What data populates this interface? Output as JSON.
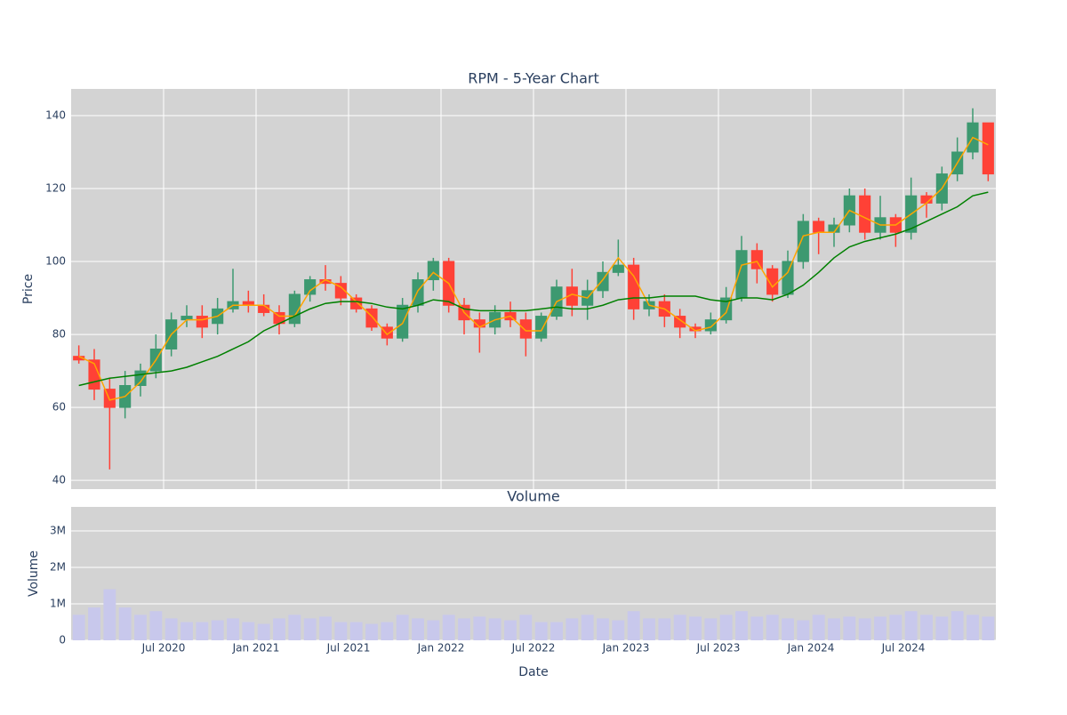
{
  "chart_data": [
    {
      "type": "candlestick",
      "title": "RPM - 5-Year Chart",
      "ylabel": "Price",
      "x": [
        "2020-01",
        "2020-02",
        "2020-03",
        "2020-04",
        "2020-05",
        "2020-06",
        "2020-07",
        "2020-08",
        "2020-09",
        "2020-10",
        "2020-11",
        "2020-12",
        "2021-01",
        "2021-02",
        "2021-03",
        "2021-04",
        "2021-05",
        "2021-06",
        "2021-07",
        "2021-08",
        "2021-09",
        "2021-10",
        "2021-11",
        "2021-12",
        "2022-01",
        "2022-02",
        "2022-03",
        "2022-04",
        "2022-05",
        "2022-06",
        "2022-07",
        "2022-08",
        "2022-09",
        "2022-10",
        "2022-11",
        "2022-12",
        "2023-01",
        "2023-02",
        "2023-03",
        "2023-04",
        "2023-05",
        "2023-06",
        "2023-07",
        "2023-08",
        "2023-09",
        "2023-10",
        "2023-11",
        "2023-12",
        "2024-01",
        "2024-02",
        "2024-03",
        "2024-04",
        "2024-05",
        "2024-06",
        "2024-07",
        "2024-08",
        "2024-09",
        "2024-10",
        "2024-11",
        "2024-12"
      ],
      "open": [
        74,
        73,
        65,
        60,
        66,
        70,
        76,
        84,
        85,
        83,
        87,
        89,
        88,
        86,
        83,
        91,
        95,
        94,
        90,
        87,
        82,
        79,
        88,
        95,
        100,
        88,
        84,
        82,
        86,
        84,
        79,
        85,
        93,
        88,
        92,
        97,
        99,
        87,
        89,
        85,
        82,
        81,
        84,
        90,
        103,
        98,
        91,
        100,
        111,
        108,
        110,
        118,
        108,
        112,
        108,
        118,
        116,
        124,
        130,
        138
      ],
      "high": [
        77,
        76,
        68,
        70,
        72,
        80,
        86,
        88,
        88,
        90,
        98,
        92,
        91,
        88,
        92,
        96,
        99,
        96,
        91,
        88,
        83,
        90,
        97,
        101,
        101,
        90,
        86,
        88,
        89,
        86,
        86,
        95,
        98,
        95,
        100,
        106,
        101,
        91,
        91,
        87,
        83,
        86,
        93,
        107,
        105,
        99,
        103,
        113,
        112,
        112,
        120,
        120,
        118,
        113,
        123,
        119,
        126,
        134,
        142,
        138
      ],
      "low": [
        72,
        62,
        43,
        57,
        63,
        68,
        74,
        82,
        79,
        80,
        86,
        86,
        85,
        80,
        82,
        89,
        92,
        88,
        86,
        81,
        77,
        78,
        86,
        92,
        86,
        80,
        75,
        80,
        82,
        74,
        78,
        84,
        85,
        84,
        90,
        96,
        84,
        85,
        82,
        79,
        79,
        80,
        83,
        89,
        94,
        89,
        90,
        98,
        102,
        104,
        108,
        106,
        106,
        104,
        106,
        112,
        114,
        122,
        128,
        122
      ],
      "close": [
        73,
        65,
        60,
        66,
        70,
        76,
        84,
        85,
        82,
        87,
        89,
        88,
        86,
        83,
        91,
        95,
        94,
        90,
        87,
        82,
        79,
        88,
        95,
        100,
        88,
        84,
        82,
        86,
        84,
        79,
        85,
        93,
        88,
        92,
        97,
        99,
        87,
        89,
        85,
        82,
        81,
        84,
        90,
        103,
        98,
        91,
        100,
        111,
        108,
        110,
        118,
        108,
        112,
        108,
        118,
        116,
        124,
        130,
        138,
        124
      ],
      "increasing_color": "#3d9970",
      "decreasing_color": "#ff4136",
      "series": [
        {
          "color": "#ffa500",
          "values": [
            74,
            72,
            62,
            63,
            67,
            73,
            80,
            84,
            84,
            85,
            88,
            88,
            88,
            85,
            85,
            92,
            95,
            93,
            89,
            85,
            80,
            83,
            92,
            97,
            94,
            86,
            82,
            84,
            85,
            81,
            81,
            89,
            91,
            90,
            95,
            101,
            96,
            88,
            87,
            84,
            81,
            82,
            86,
            99,
            100,
            93,
            97,
            107,
            108,
            108,
            114,
            112,
            110,
            110,
            113,
            116,
            120,
            127,
            134,
            132
          ]
        },
        {
          "color": "#008000",
          "values": [
            66,
            67,
            68,
            68.5,
            69,
            69.5,
            70,
            71,
            72.5,
            74,
            76,
            78,
            81,
            83,
            85,
            87,
            88.5,
            89,
            89,
            88.5,
            87.5,
            87,
            88,
            89.5,
            89,
            87,
            86.5,
            86.5,
            86.5,
            86.5,
            87,
            87.5,
            87,
            87,
            88,
            89.5,
            90,
            90,
            90.5,
            90.5,
            90.5,
            89.5,
            89,
            90,
            90,
            89.5,
            91,
            93.5,
            97,
            101,
            104,
            105.5,
            106.5,
            107.5,
            109,
            111,
            113,
            115,
            118,
            119
          ]
        }
      ],
      "xlim": [
        "2020-01",
        "2025-01"
      ],
      "xticks": [
        "2020-07",
        "2021-01",
        "2021-07",
        "2022-01",
        "2022-07",
        "2023-01",
        "2023-07",
        "2024-01",
        "2024-07"
      ],
      "ylim": [
        37.6,
        147.3
      ],
      "yticks": [
        40,
        60,
        80,
        100,
        120,
        140
      ],
      "grid": true
    },
    {
      "type": "bar",
      "title": "Volume",
      "ylabel": "Volume",
      "xlabel": "Date",
      "color": "#c8c8ec",
      "x": [
        "2020-01",
        "2020-02",
        "2020-03",
        "2020-04",
        "2020-05",
        "2020-06",
        "2020-07",
        "2020-08",
        "2020-09",
        "2020-10",
        "2020-11",
        "2020-12",
        "2021-01",
        "2021-02",
        "2021-03",
        "2021-04",
        "2021-05",
        "2021-06",
        "2021-07",
        "2021-08",
        "2021-09",
        "2021-10",
        "2021-11",
        "2021-12",
        "2022-01",
        "2022-02",
        "2022-03",
        "2022-04",
        "2022-05",
        "2022-06",
        "2022-07",
        "2022-08",
        "2022-09",
        "2022-10",
        "2022-11",
        "2022-12",
        "2023-01",
        "2023-02",
        "2023-03",
        "2023-04",
        "2023-05",
        "2023-06",
        "2023-07",
        "2023-08",
        "2023-09",
        "2023-10",
        "2023-11",
        "2023-12",
        "2024-01",
        "2024-02",
        "2024-03",
        "2024-04",
        "2024-05",
        "2024-06",
        "2024-07",
        "2024-08",
        "2024-09",
        "2024-10",
        "2024-11",
        "2024-12"
      ],
      "values": [
        700000,
        900000,
        1400000,
        900000,
        700000,
        800000,
        600000,
        500000,
        500000,
        550000,
        600000,
        500000,
        450000,
        600000,
        700000,
        600000,
        650000,
        500000,
        500000,
        450000,
        500000,
        700000,
        600000,
        550000,
        700000,
        600000,
        650000,
        600000,
        550000,
        700000,
        500000,
        500000,
        600000,
        700000,
        600000,
        550000,
        800000,
        600000,
        600000,
        700000,
        650000,
        600000,
        700000,
        800000,
        650000,
        700000,
        600000,
        550000,
        700000,
        600000,
        650000,
        600000,
        650000,
        700000,
        800000,
        700000,
        650000,
        800000,
        700000,
        650000
      ],
      "xlim": [
        "2020-01",
        "2025-01"
      ],
      "xticks": [
        {
          "value": "2020-07",
          "label": "Jul 2020"
        },
        {
          "value": "2021-01",
          "label": "Jan 2021"
        },
        {
          "value": "2021-07",
          "label": "Jul 2021"
        },
        {
          "value": "2022-01",
          "label": "Jan 2022"
        },
        {
          "value": "2022-07",
          "label": "Jul 2022"
        },
        {
          "value": "2023-01",
          "label": "Jan 2023"
        },
        {
          "value": "2023-07",
          "label": "Jul 2023"
        },
        {
          "value": "2024-01",
          "label": "Jan 2024"
        },
        {
          "value": "2024-07",
          "label": "Jul 2024"
        }
      ],
      "ylim": [
        0,
        3660000
      ],
      "yticks": [
        0,
        {
          "value": 1000000,
          "label": "1M"
        },
        {
          "value": 2000000,
          "label": "2M"
        },
        {
          "value": 3000000,
          "label": "3M"
        }
      ],
      "grid": true
    }
  ]
}
